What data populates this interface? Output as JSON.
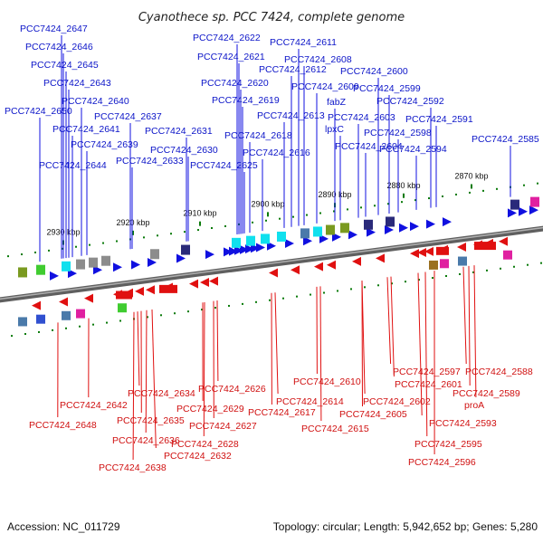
{
  "title": "Cyanothece sp. PCC 7424, complete genome",
  "footer": {
    "accession": "Accession: NC_011729",
    "summary": "Topology: circular; Length: 5,942,652 bp; Genes: 5,280"
  },
  "colors": {
    "forward": "#1010e0",
    "reverse": "#e01010",
    "backbone": "#7a7a7a",
    "tick_major": "#0a7a0a",
    "cyan": "#10e0ee",
    "olive": "#7a9a20",
    "navy": "#2a2a7a",
    "gray": "#8c8c8c",
    "magenta": "#e020a0",
    "green": "#40cc30",
    "steel": "#4a7aaa",
    "blue": "#3050d0",
    "brown": "#9a7020"
  },
  "scale": {
    "ticks": [
      "2930 kbp",
      "2920 kbp",
      "2910 kbp",
      "2900 kbp",
      "2890 kbp",
      "2880 kbp",
      "2870 kbp"
    ]
  },
  "forward_genes": [
    {
      "label": "PCC7424_2647"
    },
    {
      "label": "PCC7424_2646"
    },
    {
      "label": "PCC7424_2645"
    },
    {
      "label": "PCC7424_2643"
    },
    {
      "label": "PCC7424_2640"
    },
    {
      "label": "PCC7424_2650"
    },
    {
      "label": "PCC7424_2637"
    },
    {
      "label": "PCC7424_2641"
    },
    {
      "label": "PCC7424_2639"
    },
    {
      "label": "PCC7424_2644"
    },
    {
      "label": "PCC7424_2633"
    },
    {
      "label": "PCC7424_2631"
    },
    {
      "label": "PCC7424_2630"
    },
    {
      "label": "PCC7424_2622"
    },
    {
      "label": "PCC7424_2621"
    },
    {
      "label": "PCC7424_2620"
    },
    {
      "label": "PCC7424_2619"
    },
    {
      "label": "PCC7424_2618"
    },
    {
      "label": "PCC7424_2625"
    },
    {
      "label": "PCC7424_2616"
    },
    {
      "label": "PCC7424_2613"
    },
    {
      "label": "PCC7424_2612"
    },
    {
      "label": "PCC7424_2611"
    },
    {
      "label": "PCC7424_2608"
    },
    {
      "label": "PCC7424_2609"
    },
    {
      "label": "fabZ"
    },
    {
      "label": "lpxC"
    },
    {
      "label": "PCC7424_2603"
    },
    {
      "label": "PCC7424_2604"
    },
    {
      "label": "PCC7424_2600"
    },
    {
      "label": "PCC7424_2599"
    },
    {
      "label": "PCC7424_2598"
    },
    {
      "label": "PCC7424_2592"
    },
    {
      "label": "PCC7424_2591"
    },
    {
      "label": "PCC7424_2594"
    },
    {
      "label": "PCC7424_2585"
    }
  ],
  "reverse_genes": [
    {
      "label": "PCC7424_2642"
    },
    {
      "label": "PCC7424_2648"
    },
    {
      "label": "PCC7424_2634"
    },
    {
      "label": "PCC7424_2635"
    },
    {
      "label": "PCC7424_2636"
    },
    {
      "label": "PCC7424_2638"
    },
    {
      "label": "PCC7424_2632"
    },
    {
      "label": "PCC7424_2626"
    },
    {
      "label": "PCC7424_2629"
    },
    {
      "label": "PCC7424_2627"
    },
    {
      "label": "PCC7424_2628"
    },
    {
      "label": "PCC7424_2610"
    },
    {
      "label": "PCC7424_2614"
    },
    {
      "label": "PCC7424_2617"
    },
    {
      "label": "PCC7424_2615"
    },
    {
      "label": "PCC7424_2597"
    },
    {
      "label": "PCC7424_2601"
    },
    {
      "label": "PCC7424_2602"
    },
    {
      "label": "PCC7424_2605"
    },
    {
      "label": "PCC7424_2588"
    },
    {
      "label": "PCC7424_2589"
    },
    {
      "label": "proA"
    },
    {
      "label": "PCC7424_2593"
    },
    {
      "label": "PCC7424_2595"
    },
    {
      "label": "PCC7424_2596"
    }
  ]
}
